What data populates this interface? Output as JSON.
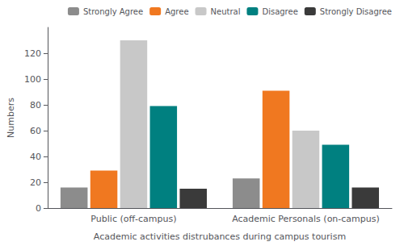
{
  "chart_data": {
    "type": "bar",
    "categories": [
      "Public (off-campus)",
      "Academic Personals (on-campus)"
    ],
    "series": [
      {
        "name": "Strongly Agree",
        "color": "#8c8c8c",
        "values": [
          16,
          23
        ]
      },
      {
        "name": "Agree",
        "color": "#f07820",
        "values": [
          29,
          91
        ]
      },
      {
        "name": "Neutral",
        "color": "#c8c8c8",
        "values": [
          130,
          60
        ]
      },
      {
        "name": "Disagree",
        "color": "#008080",
        "values": [
          79,
          49
        ]
      },
      {
        "name": "Strongly Disagree",
        "color": "#3a3a3a",
        "values": [
          15,
          16
        ]
      }
    ],
    "xlabel": "Academic activities distrubances during campus tourism",
    "ylabel": "Numbers",
    "ylim": [
      0,
      140
    ],
    "yticks": [
      0,
      20,
      40,
      60,
      80,
      100,
      120
    ],
    "grid": false,
    "legend": "upper right"
  }
}
